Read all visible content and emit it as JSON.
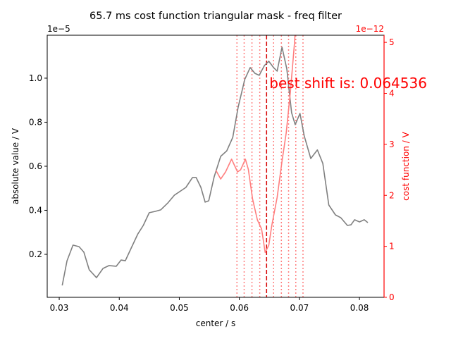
{
  "chart_data": {
    "type": "line",
    "title": "65.7 ms cost function triangular mask - freq filter",
    "xlabel": "center / s",
    "ylabel": "absolute value / V",
    "y2label": "cost function / V",
    "y_offset": "1e−5",
    "y2_offset": "1e−12",
    "annotation": "best shift is: 0.064536",
    "xlim": [
      0.028,
      0.0841
    ],
    "ylim": [
      0.0048,
      1.195
    ],
    "y2lim": [
      0,
      5.14
    ],
    "xticks": [
      0.03,
      0.04,
      0.05,
      0.06,
      0.07,
      0.08
    ],
    "yticks": [
      0.2,
      0.4,
      0.6,
      0.8,
      {
        "value": 1,
        "label": "1.0"
      }
    ],
    "y2ticks": [
      0,
      1,
      2,
      3,
      4,
      5
    ],
    "axis_color": "#000000",
    "y2_axis_color": "#ff0000",
    "series": [
      {
        "name": "absolute value",
        "color": "#808080",
        "x": [
          0.0305,
          0.0313,
          0.0323,
          0.0333,
          0.0341,
          0.035,
          0.0362,
          0.0373,
          0.0383,
          0.0395,
          0.0403,
          0.041,
          0.042,
          0.0431,
          0.044,
          0.045,
          0.046,
          0.0469,
          0.0481,
          0.0492,
          0.0504,
          0.0511,
          0.0522,
          0.0528,
          0.0536,
          0.0543,
          0.0549,
          0.0558,
          0.0569,
          0.0579,
          0.0589,
          0.0598,
          0.0609,
          0.0618,
          0.0626,
          0.0633,
          0.0642,
          0.0649,
          0.0657,
          0.0663,
          0.0671,
          0.0679,
          0.0687,
          0.0693,
          0.0701,
          0.0708,
          0.0719,
          0.073,
          0.0739,
          0.0749,
          0.076,
          0.0769,
          0.078,
          0.0786,
          0.0792,
          0.08,
          0.0808,
          0.0814
        ],
        "values": [
          0.059,
          0.171,
          0.242,
          0.235,
          0.21,
          0.13,
          0.094,
          0.136,
          0.149,
          0.146,
          0.174,
          0.171,
          0.229,
          0.293,
          0.331,
          0.389,
          0.395,
          0.402,
          0.434,
          0.469,
          0.491,
          0.504,
          0.549,
          0.549,
          0.504,
          0.437,
          0.443,
          0.552,
          0.645,
          0.67,
          0.731,
          0.869,
          0.994,
          1.048,
          1.022,
          1.013,
          1.058,
          1.077,
          1.048,
          1.032,
          1.141,
          1.042,
          0.843,
          0.789,
          0.84,
          0.738,
          0.635,
          0.674,
          0.613,
          0.424,
          0.379,
          0.366,
          0.331,
          0.334,
          0.357,
          0.347,
          0.357,
          0.344
        ]
      },
      {
        "name": "cost function",
        "color": "#ff7f7f",
        "axis": "y2",
        "x": [
          0.0561,
          0.0569,
          0.0577,
          0.0587,
          0.0591,
          0.0597,
          0.0602,
          0.061,
          0.0615,
          0.0622,
          0.063,
          0.0637,
          0.0643,
          0.0649,
          0.0654,
          0.0663,
          0.0671,
          0.0678,
          0.0685,
          0.0692,
          0.0694
        ],
        "values": [
          2.49,
          2.32,
          2.46,
          2.71,
          2.61,
          2.46,
          2.5,
          2.71,
          2.51,
          1.93,
          1.52,
          1.34,
          0.88,
          1.02,
          1.41,
          1.96,
          2.67,
          3.22,
          4.03,
          5.0,
          5.4
        ]
      }
    ],
    "vlines": {
      "color": "#ff7f7f",
      "style": "dotted",
      "values": [
        0.0596,
        0.0608,
        0.0621,
        0.0634,
        0.0657,
        0.067,
        0.0682,
        0.0694,
        0.0706
      ]
    },
    "best_shift": {
      "color": "#d60000",
      "style": "dashed",
      "value": 0.064536
    }
  }
}
